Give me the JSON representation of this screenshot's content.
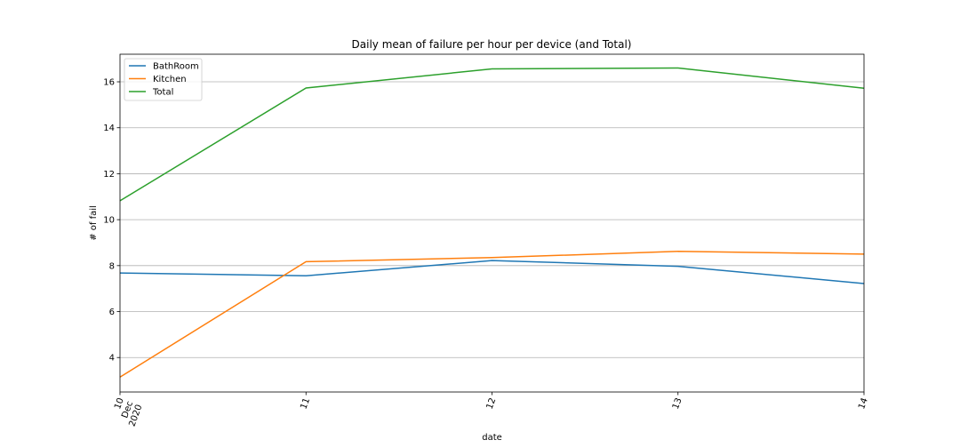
{
  "chart_data": {
    "type": "line",
    "title": "Daily mean of failure per hour per device (and Total)",
    "xlabel": "date",
    "ylabel": "# of fail",
    "x": [
      10,
      11,
      12,
      13,
      14
    ],
    "x_tick_labels": [
      [
        "10",
        "Dec",
        "2020"
      ],
      [
        "11"
      ],
      [
        "12"
      ],
      [
        "13"
      ],
      [
        "14"
      ]
    ],
    "xlim": [
      10,
      14
    ],
    "ylim": [
      2.5,
      17.2
    ],
    "y_ticks": [
      4,
      6,
      8,
      10,
      12,
      14,
      16
    ],
    "grid": "y",
    "legend_position": "upper left",
    "series": [
      {
        "name": "BathRoom",
        "color": "#1f77b4",
        "values": [
          7.68,
          7.56,
          8.22,
          7.97,
          7.22
        ]
      },
      {
        "name": "Kitchen",
        "color": "#ff7f0e",
        "values": [
          3.15,
          8.17,
          8.35,
          8.62,
          8.5
        ]
      },
      {
        "name": "Total",
        "color": "#2ca02c",
        "values": [
          10.82,
          15.73,
          16.56,
          16.6,
          15.72
        ]
      }
    ]
  }
}
